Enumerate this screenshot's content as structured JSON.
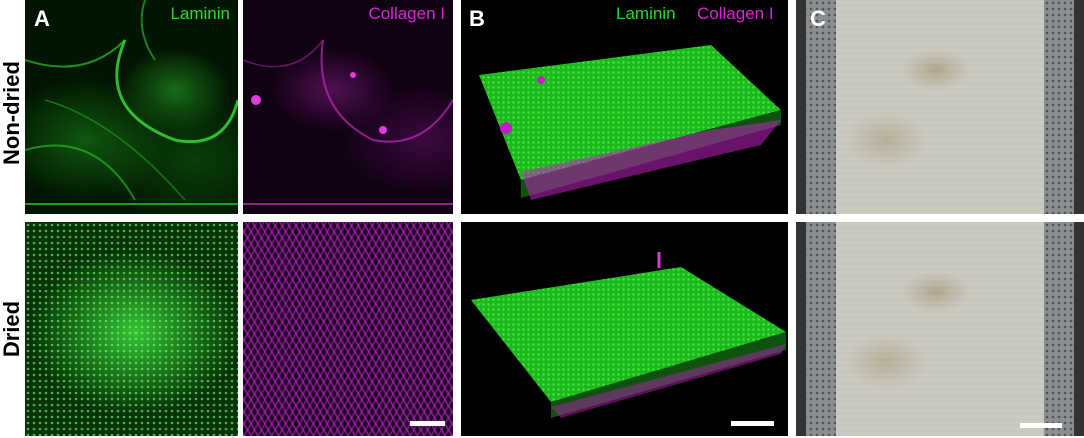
{
  "panel_letters": {
    "a": "A",
    "b": "B",
    "c": "C"
  },
  "row_labels": {
    "top": "Non-dried",
    "bottom": "Dried"
  },
  "channel_labels": {
    "laminin": "Laminin",
    "collagen": "Collagen I",
    "merged_laminin": "Laminin",
    "merged_collagen": "Collagen I"
  },
  "colors": {
    "laminin": "#22dd22",
    "collagen": "#dd22dd"
  }
}
